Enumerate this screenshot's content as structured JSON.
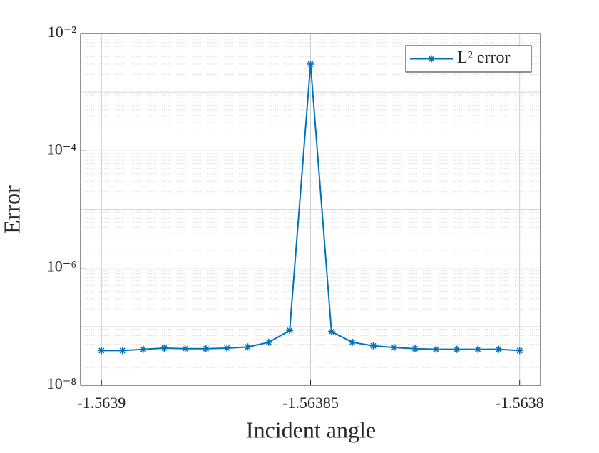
{
  "chart_data": {
    "type": "line",
    "xlabel": "Incident angle",
    "ylabel": "Error",
    "x": [
      -1.5639,
      -1.563895,
      -1.56389,
      -1.563885,
      -1.56388,
      -1.563875,
      -1.56387,
      -1.563865,
      -1.56386,
      -1.563855,
      -1.56385,
      -1.563845,
      -1.56384,
      -1.563835,
      -1.56383,
      -1.563825,
      -1.56382,
      -1.563815,
      -1.56381,
      -1.563805,
      -1.5638
    ],
    "series": [
      {
        "name": "L² error",
        "color": "#0072bd",
        "values": [
          3.9e-08,
          3.9e-08,
          4.1e-08,
          4.3e-08,
          4.2e-08,
          4.2e-08,
          4.3e-08,
          4.5e-08,
          5.4e-08,
          8.6e-08,
          0.003,
          8.2e-08,
          5.4e-08,
          4.7e-08,
          4.4e-08,
          4.2e-08,
          4.1e-08,
          4.1e-08,
          4.1e-08,
          4.1e-08,
          3.9e-08
        ]
      }
    ],
    "xlim": [
      -1.563905,
      -1.563795
    ],
    "xticks": [
      -1.5639,
      -1.56385,
      -1.5638
    ],
    "ylim": [
      1e-08,
      0.01
    ],
    "yscale": "log",
    "yticks": [
      {
        "value": 1e-08,
        "label": "10⁻⁸"
      },
      {
        "value": 1e-06,
        "label": "10⁻⁶"
      },
      {
        "value": 0.0001,
        "label": "10⁻⁴"
      },
      {
        "value": 0.01,
        "label": "10⁻²"
      }
    ],
    "grid": true,
    "legend": "upper right"
  }
}
